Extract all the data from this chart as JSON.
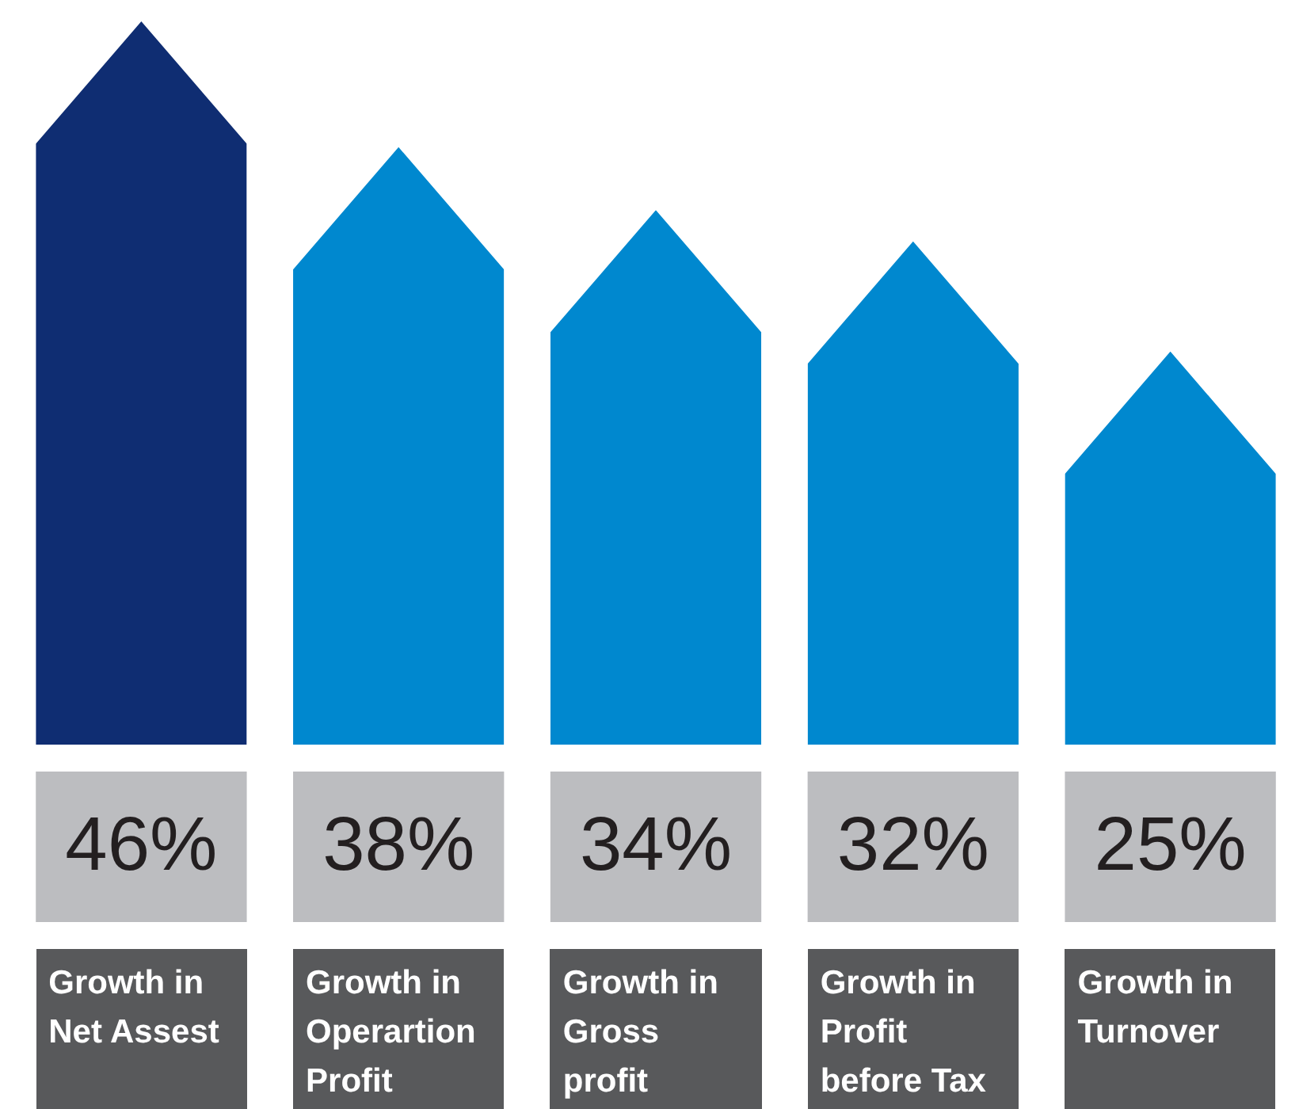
{
  "chart_data": {
    "type": "bar",
    "categories": [
      "Growth in Net Assest",
      "Growth in Operartion Profit",
      "Growth in Gross profit",
      "Growth in Profit before Tax",
      "Growth in Turnover"
    ],
    "values": [
      46,
      38,
      34,
      32,
      25
    ],
    "colors": [
      "#0f2d72",
      "#0088cf",
      "#0088cf",
      "#0088cf",
      "#0088cf"
    ],
    "value_labels": [
      "46%",
      "38%",
      "34%",
      "32%",
      "25%"
    ],
    "legend": false,
    "tick_labels": false
  }
}
